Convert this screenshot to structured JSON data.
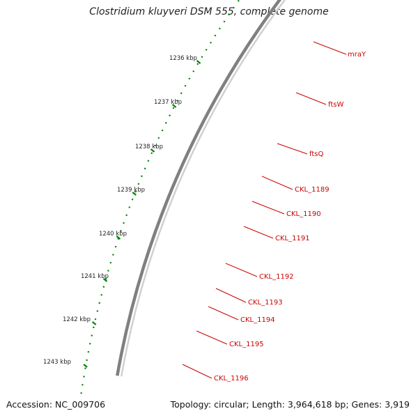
{
  "title": "Clostridium kluyveri DSM 555, complete genome",
  "footer": {
    "accession": "Accession: NC_009706",
    "topology": "Topology: circular; Length: 3,964,618 bp; Genes: 3,919"
  },
  "colors": {
    "cds_red": "#ff0000",
    "cog_green": "#6b8e23",
    "cog_yellow": "#f0e68c",
    "cog_gray": "#696969",
    "cog_lightgray": "#c8c8c8",
    "cog_blue": "#00bfff",
    "tick_green": "#008000",
    "backbone": "#808080",
    "label_red": "#cc0000"
  },
  "scale": {
    "unit": "kbp",
    "labels": [
      "1236 kbp",
      "1237 kbp",
      "1238 kbp",
      "1239 kbp",
      "1240 kbp",
      "1241 kbp",
      "1242 kbp",
      "1243 kbp"
    ]
  },
  "genes": [
    {
      "name": "mraY",
      "cog": "green"
    },
    {
      "name": "ftsW",
      "cog": "yellow"
    },
    {
      "name": "ftsQ",
      "cog": "green"
    },
    {
      "name": "CKL_1189",
      "cog": "gray"
    },
    {
      "name": "CKL_1190",
      "cog": "gray"
    },
    {
      "name": "CKL_1191",
      "cog": "gray"
    },
    {
      "name": "CKL_1192",
      "cog": "lightgray"
    },
    {
      "name": "CKL_1193",
      "cog": "gray"
    },
    {
      "name": "CKL_1194",
      "cog": "gray"
    },
    {
      "name": "CKL_1195",
      "cog": "gray"
    },
    {
      "name": "CKL_1196",
      "cog": "yellow"
    }
  ]
}
